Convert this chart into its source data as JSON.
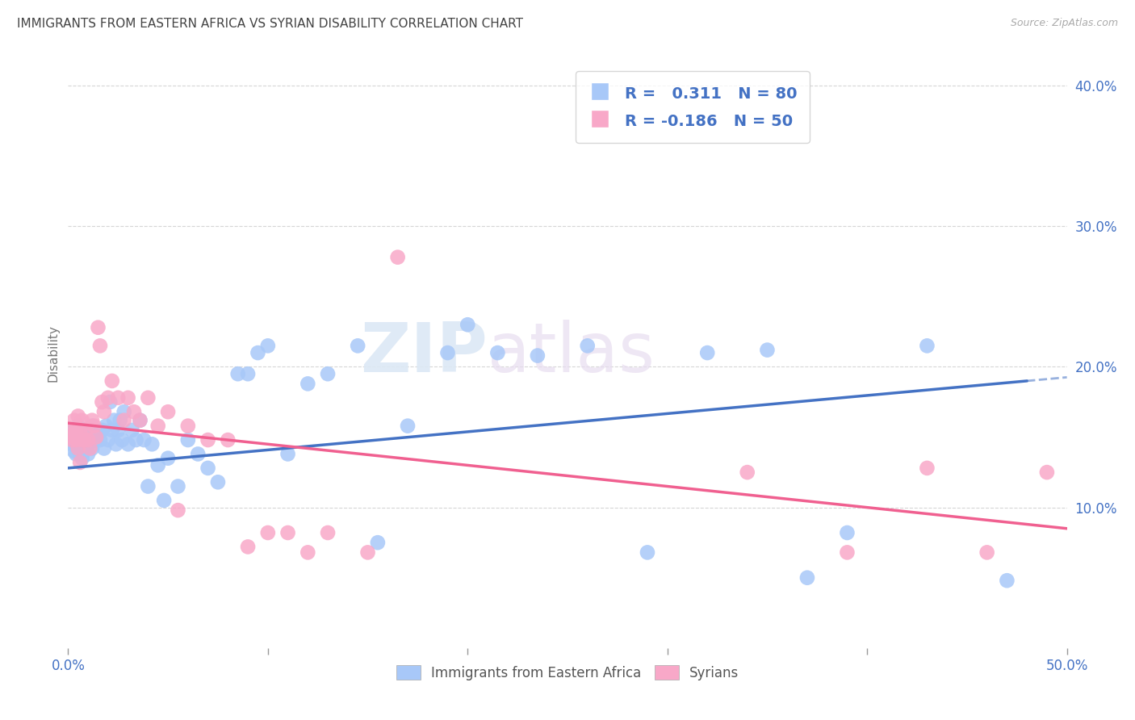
{
  "title": "IMMIGRANTS FROM EASTERN AFRICA VS SYRIAN DISABILITY CORRELATION CHART",
  "source": "Source: ZipAtlas.com",
  "ylabel": "Disability",
  "xlim": [
    0.0,
    0.5
  ],
  "ylim": [
    0.0,
    0.42
  ],
  "xticks": [
    0.0,
    0.1,
    0.2,
    0.3,
    0.4,
    0.5
  ],
  "yticks": [
    0.1,
    0.2,
    0.3,
    0.4
  ],
  "ytick_labels": [
    "10.0%",
    "20.0%",
    "30.0%",
    "40.0%"
  ],
  "blue_R": 0.311,
  "blue_N": 80,
  "pink_R": -0.186,
  "pink_N": 50,
  "blue_color": "#a8c8f8",
  "pink_color": "#f8a8c8",
  "blue_line_color": "#4472c4",
  "pink_line_color": "#f06090",
  "watermark_zip": "ZIP",
  "watermark_atlas": "atlas",
  "legend_label_blue": "Immigrants from Eastern Africa",
  "legend_label_pink": "Syrians",
  "blue_x": [
    0.001,
    0.002,
    0.002,
    0.003,
    0.003,
    0.003,
    0.004,
    0.004,
    0.004,
    0.005,
    0.005,
    0.005,
    0.006,
    0.006,
    0.007,
    0.007,
    0.007,
    0.008,
    0.008,
    0.009,
    0.009,
    0.01,
    0.01,
    0.011,
    0.011,
    0.012,
    0.012,
    0.013,
    0.014,
    0.015,
    0.016,
    0.017,
    0.018,
    0.019,
    0.02,
    0.021,
    0.022,
    0.023,
    0.024,
    0.025,
    0.026,
    0.027,
    0.028,
    0.03,
    0.032,
    0.034,
    0.036,
    0.038,
    0.04,
    0.042,
    0.045,
    0.048,
    0.05,
    0.055,
    0.06,
    0.065,
    0.07,
    0.075,
    0.085,
    0.09,
    0.095,
    0.1,
    0.11,
    0.12,
    0.13,
    0.145,
    0.155,
    0.17,
    0.19,
    0.2,
    0.215,
    0.235,
    0.26,
    0.29,
    0.32,
    0.35,
    0.37,
    0.39,
    0.43,
    0.47
  ],
  "blue_y": [
    0.155,
    0.15,
    0.145,
    0.155,
    0.148,
    0.14,
    0.152,
    0.145,
    0.138,
    0.15,
    0.143,
    0.158,
    0.145,
    0.138,
    0.152,
    0.145,
    0.135,
    0.148,
    0.14,
    0.152,
    0.142,
    0.145,
    0.138,
    0.15,
    0.143,
    0.158,
    0.142,
    0.155,
    0.148,
    0.152,
    0.148,
    0.155,
    0.142,
    0.158,
    0.148,
    0.175,
    0.155,
    0.162,
    0.145,
    0.155,
    0.162,
    0.148,
    0.168,
    0.145,
    0.155,
    0.148,
    0.162,
    0.148,
    0.115,
    0.145,
    0.13,
    0.105,
    0.135,
    0.115,
    0.148,
    0.138,
    0.128,
    0.118,
    0.195,
    0.195,
    0.21,
    0.215,
    0.138,
    0.188,
    0.195,
    0.215,
    0.075,
    0.158,
    0.21,
    0.23,
    0.21,
    0.208,
    0.215,
    0.068,
    0.21,
    0.212,
    0.05,
    0.082,
    0.215,
    0.048
  ],
  "pink_x": [
    0.001,
    0.002,
    0.002,
    0.003,
    0.003,
    0.004,
    0.004,
    0.005,
    0.005,
    0.006,
    0.006,
    0.007,
    0.007,
    0.008,
    0.009,
    0.01,
    0.011,
    0.012,
    0.013,
    0.014,
    0.015,
    0.016,
    0.017,
    0.018,
    0.02,
    0.022,
    0.025,
    0.028,
    0.03,
    0.033,
    0.036,
    0.04,
    0.045,
    0.05,
    0.055,
    0.06,
    0.07,
    0.08,
    0.09,
    0.1,
    0.11,
    0.12,
    0.13,
    0.15,
    0.165,
    0.34,
    0.39,
    0.43,
    0.46,
    0.49
  ],
  "pink_y": [
    0.15,
    0.155,
    0.148,
    0.152,
    0.162,
    0.148,
    0.155,
    0.142,
    0.165,
    0.132,
    0.155,
    0.148,
    0.162,
    0.148,
    0.155,
    0.148,
    0.142,
    0.162,
    0.158,
    0.15,
    0.228,
    0.215,
    0.175,
    0.168,
    0.178,
    0.19,
    0.178,
    0.162,
    0.178,
    0.168,
    0.162,
    0.178,
    0.158,
    0.168,
    0.098,
    0.158,
    0.148,
    0.148,
    0.072,
    0.082,
    0.082,
    0.068,
    0.082,
    0.068,
    0.278,
    0.125,
    0.068,
    0.128,
    0.068,
    0.125
  ]
}
